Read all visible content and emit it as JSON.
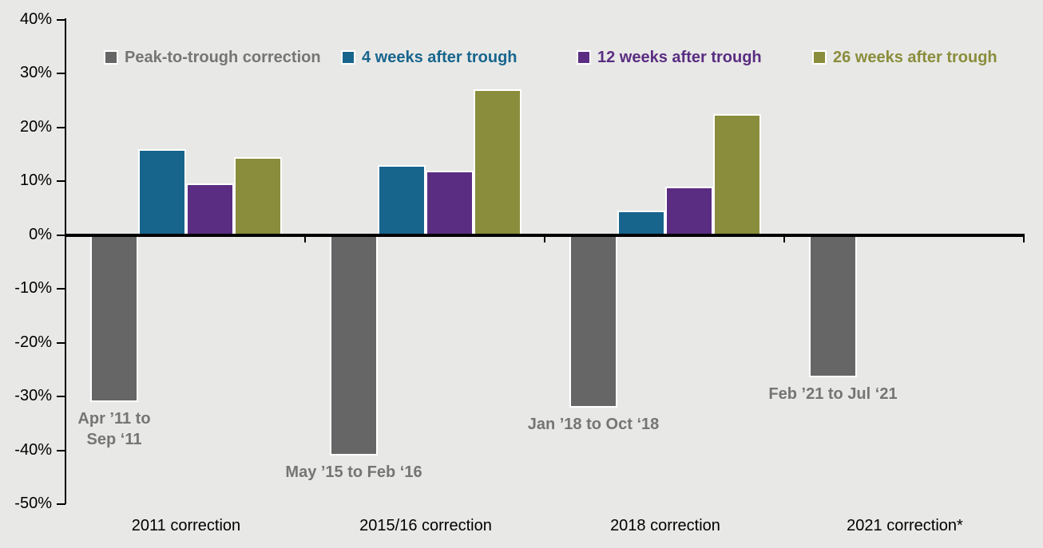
{
  "colors": {
    "background": "#E8E8E6",
    "axis": "#000000",
    "category_label": "#000000",
    "period_label": "#757575",
    "bar_border": "#FFFFFF"
  },
  "chart_data": {
    "type": "bar",
    "title": "",
    "xlabel": "",
    "ylabel": "",
    "unit": "percent",
    "grid": false,
    "legend_position": "top",
    "ylim": [
      -50,
      40
    ],
    "yticks": [
      40,
      30,
      20,
      10,
      0,
      -10,
      -20,
      -30,
      -40,
      -50
    ],
    "ytick_labels": [
      "40%",
      "30%",
      "20%",
      "10%",
      "0%",
      "-10%",
      "-20%",
      "-30%",
      "-40%",
      "-50%"
    ],
    "categories": [
      "2011 correction",
      "2015/16 correction",
      "2018 correction",
      "2021 correction*"
    ],
    "period_labels": [
      [
        "Apr ’11 to",
        "Sep ‘11"
      ],
      [
        "May ’15 to Feb ‘16"
      ],
      [
        "Jan ’18 to Oct ‘18"
      ],
      [
        "Feb ’21 to Jul ‘21"
      ]
    ],
    "series": [
      {
        "name": "Peak-to-trough correction",
        "color": "#666666",
        "text_color": "#757575",
        "values": [
          -31,
          -41,
          -32,
          -26.5
        ]
      },
      {
        "name": "4 weeks after trough",
        "color": "#17658D",
        "text_color": "#17658D",
        "values": [
          16,
          13,
          4.5,
          null
        ]
      },
      {
        "name": "12 weeks after trough",
        "color": "#5A2D82",
        "text_color": "#5A2D82",
        "values": [
          9.5,
          12,
          9,
          null
        ]
      },
      {
        "name": "26 weeks after trough",
        "color": "#8A8D3B",
        "text_color": "#8A8D3B",
        "values": [
          14.5,
          27,
          22.5,
          null
        ]
      }
    ]
  }
}
